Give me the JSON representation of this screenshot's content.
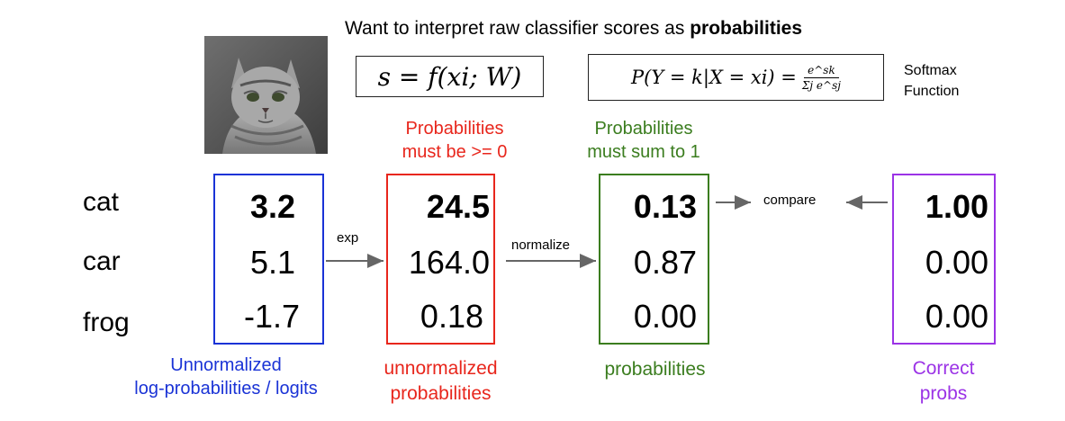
{
  "title": {
    "prefix": "Want to interpret raw classifier scores as ",
    "bold": "probabilities"
  },
  "formulas": {
    "score": "s = f(xi; W)",
    "softmax_lhs": "P(Y = k|X = xi) =",
    "softmax_num": "e^sk",
    "softmax_den": "Σj e^sj"
  },
  "softmax_label": [
    "Softmax",
    "Function"
  ],
  "classes": [
    "cat",
    "car",
    "frog"
  ],
  "columns": [
    {
      "values": [
        "3.2",
        "5.1",
        "-1.7"
      ],
      "caption": [
        "Unnormalized",
        "log-probabilities / logits"
      ],
      "color": "#1a33d6"
    },
    {
      "values": [
        "24.5",
        "164.0",
        "0.18"
      ],
      "caption": [
        "unnormalized",
        "probabilities"
      ],
      "header": [
        "Probabilities",
        "must be >= 0"
      ],
      "color": "#e8261c"
    },
    {
      "values": [
        "0.13",
        "0.87",
        "0.00"
      ],
      "caption": [
        "probabilities"
      ],
      "header": [
        "Probabilities",
        "must sum to 1"
      ],
      "color": "#3b7d1f"
    },
    {
      "values": [
        "1.00",
        "0.00",
        "0.00"
      ],
      "caption": [
        "Correct",
        "probs"
      ],
      "color": "#9b33e6"
    }
  ],
  "arrow_labels": {
    "exp": "exp",
    "normalize": "normalize",
    "compare": "compare"
  },
  "colors": {
    "arrow": "#666666",
    "fur": "#8a8a8a"
  },
  "icons": {
    "image": "cat-photo"
  }
}
